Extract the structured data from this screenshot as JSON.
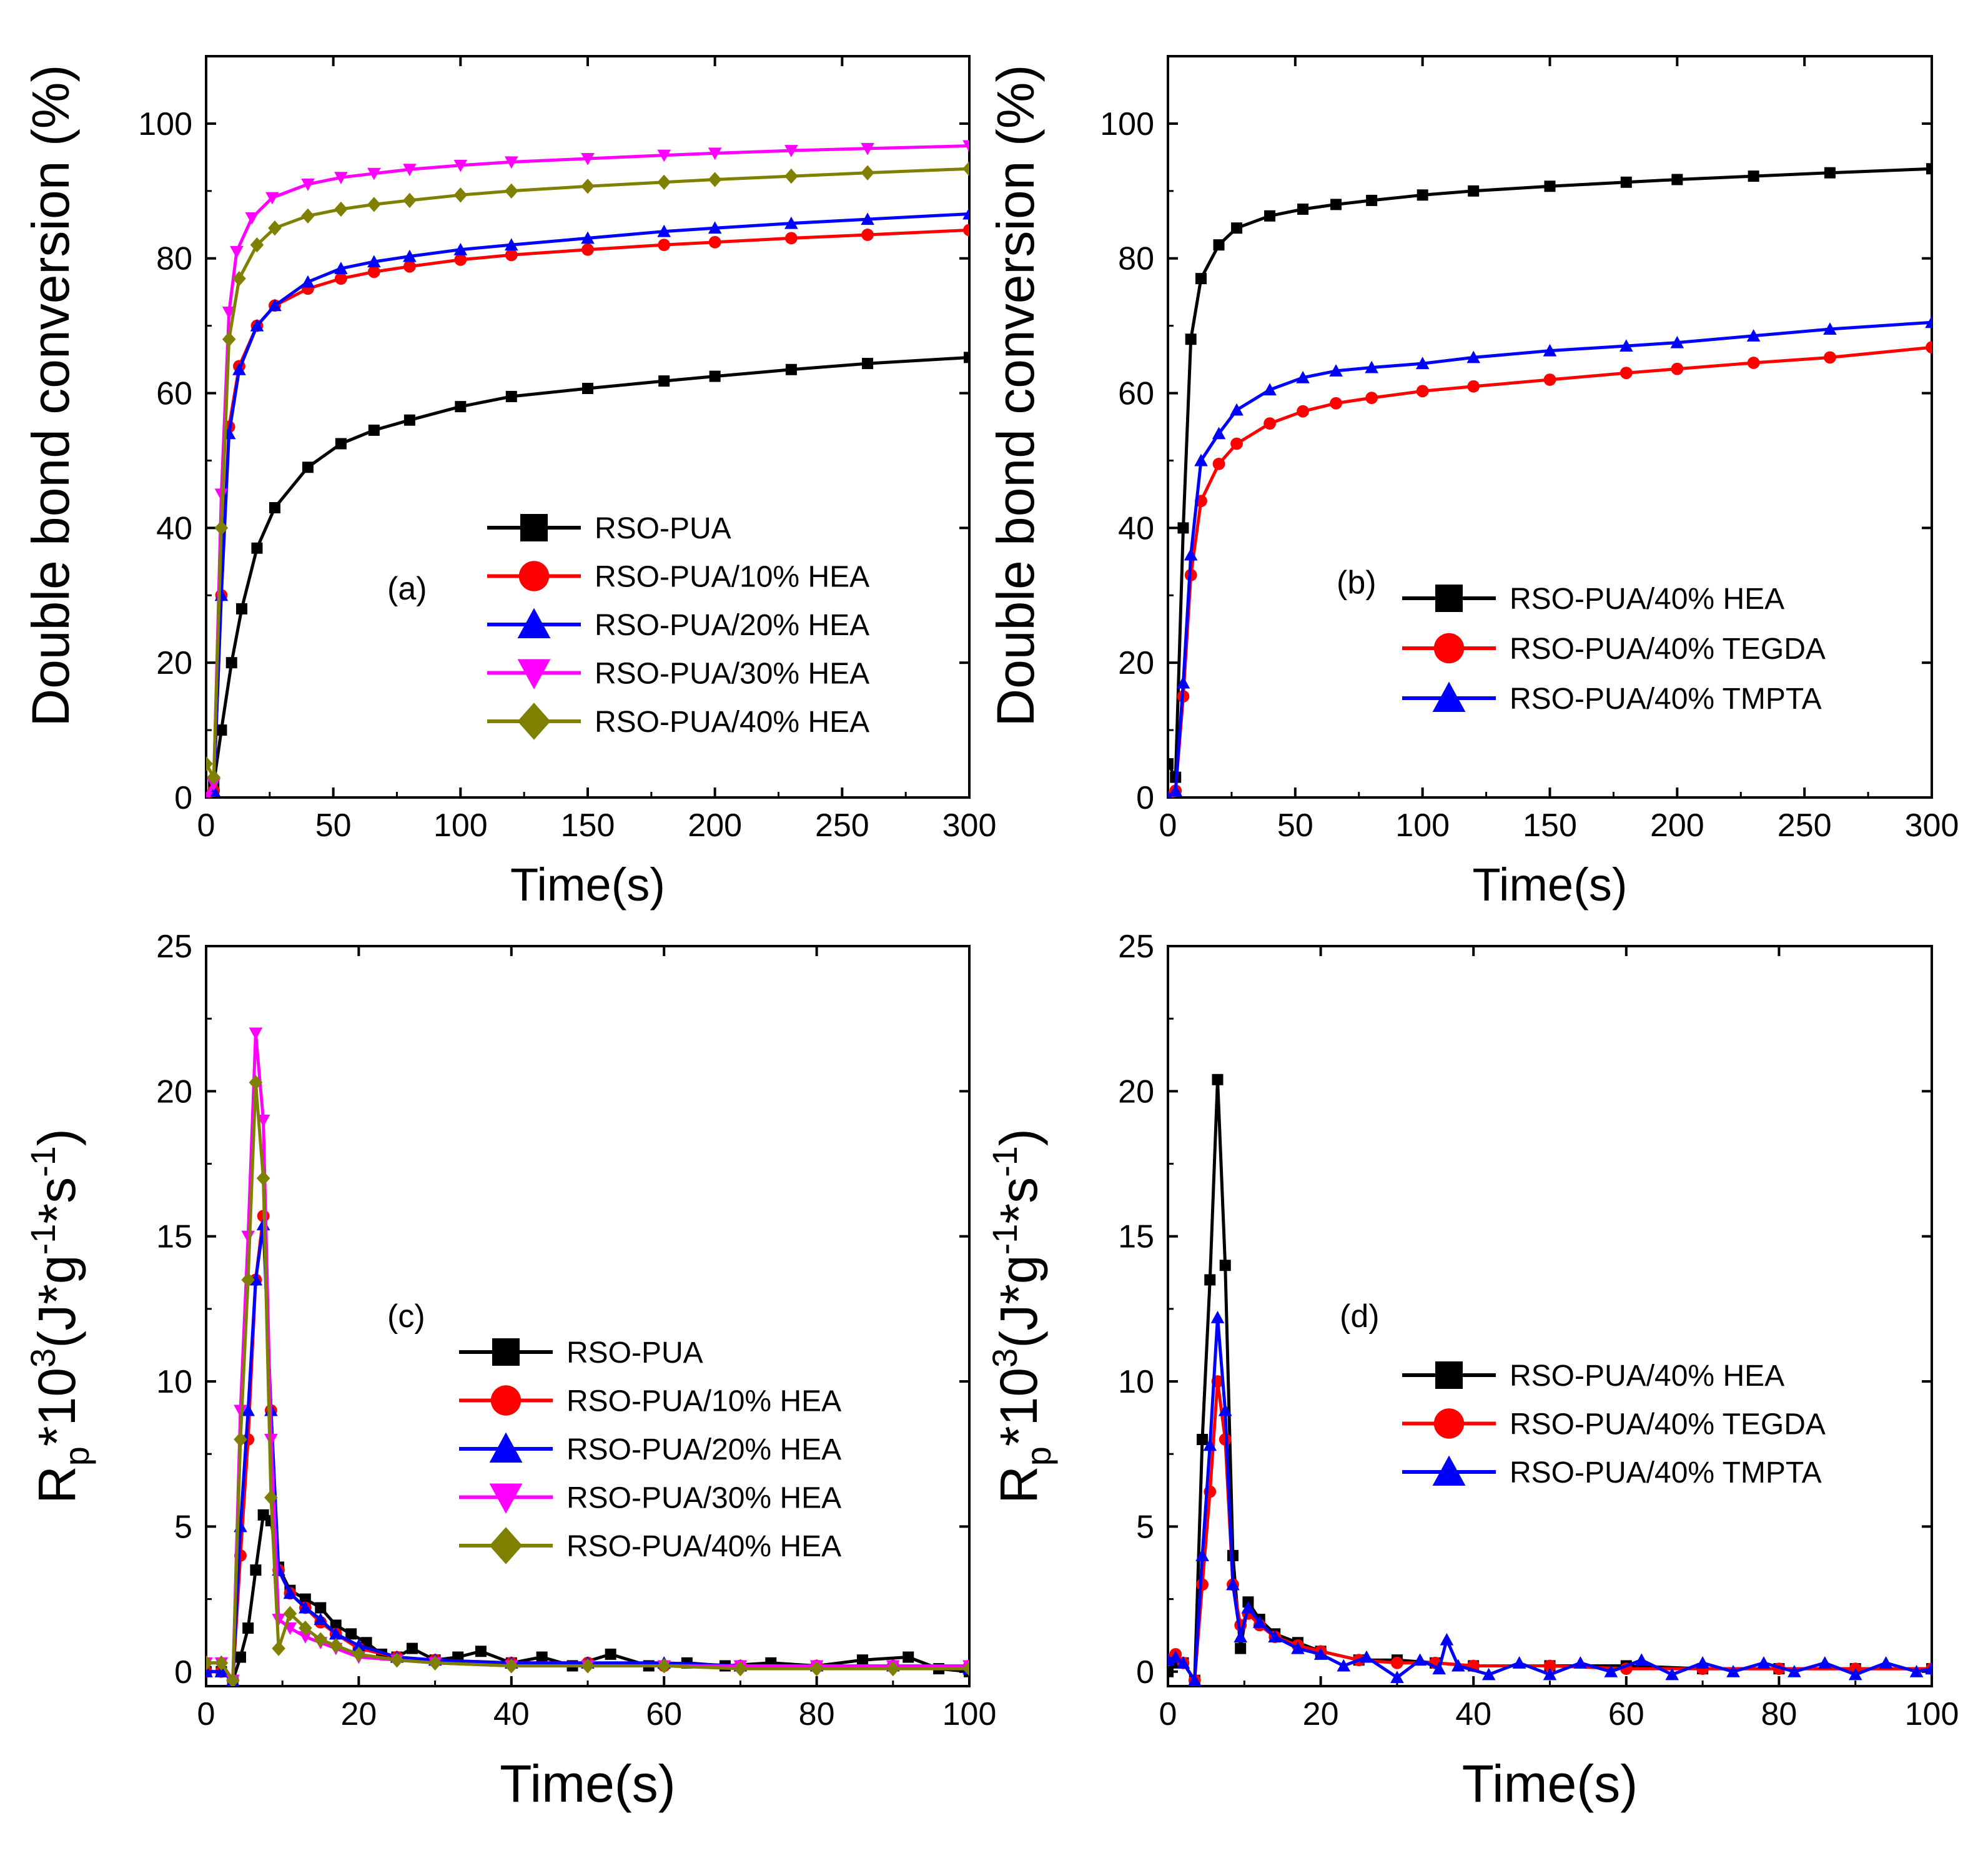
{
  "chart_data": [
    {
      "id": "a",
      "type": "line",
      "panel_label": "(a)",
      "xlabel": "Time(s)",
      "ylabel": "Double bond conversion (%)",
      "xlim": [
        0,
        300
      ],
      "ylim": [
        0,
        110
      ],
      "xticks": [
        0,
        50,
        100,
        150,
        200,
        250,
        300
      ],
      "yticks": [
        0,
        20,
        40,
        60,
        80,
        100
      ],
      "legend_position": "center-right",
      "series": [
        {
          "name": "RSO-PUA",
          "color": "#000000",
          "marker": "square",
          "x": [
            0,
            3,
            6,
            10,
            14,
            20,
            27,
            40,
            53,
            66,
            80,
            100,
            120,
            150,
            180,
            200,
            230,
            260,
            300
          ],
          "y": [
            0,
            2,
            10,
            20,
            28,
            37,
            43,
            49,
            52.5,
            54.5,
            56,
            58,
            59.5,
            60.7,
            61.8,
            62.5,
            63.5,
            64.4,
            65.3
          ]
        },
        {
          "name": "RSO-PUA/10% HEA",
          "color": "#ff0000",
          "marker": "circle",
          "x": [
            0,
            3,
            6,
            9,
            13,
            20,
            27,
            40,
            53,
            66,
            80,
            100,
            120,
            150,
            180,
            200,
            230,
            260,
            300
          ],
          "y": [
            0,
            1,
            30,
            55,
            64,
            70,
            73,
            75.5,
            77,
            78,
            78.8,
            79.8,
            80.5,
            81.3,
            82,
            82.4,
            83,
            83.5,
            84.2
          ]
        },
        {
          "name": "RSO-PUA/20% HEA",
          "color": "#0000ff",
          "marker": "triangle-up",
          "x": [
            0,
            3,
            6,
            9,
            13,
            20,
            27,
            40,
            53,
            66,
            80,
            100,
            120,
            150,
            180,
            200,
            230,
            260,
            300
          ],
          "y": [
            0,
            1,
            30,
            54,
            63.5,
            70,
            73,
            76.5,
            78.5,
            79.5,
            80.3,
            81.3,
            82,
            83,
            84,
            84.5,
            85.2,
            85.8,
            86.6
          ]
        },
        {
          "name": "RSO-PUA/30% HEA",
          "color": "#ff00ff",
          "marker": "triangle-down",
          "x": [
            0,
            3,
            6,
            9,
            12,
            18,
            26,
            40,
            53,
            66,
            80,
            100,
            120,
            150,
            180,
            200,
            230,
            260,
            300
          ],
          "y": [
            0,
            2,
            45,
            72,
            81,
            86,
            89,
            91,
            92,
            92.6,
            93.2,
            93.8,
            94.3,
            94.8,
            95.3,
            95.6,
            96,
            96.3,
            96.7
          ]
        },
        {
          "name": "RSO-PUA/40% HEA",
          "color": "#808000",
          "marker": "diamond",
          "x": [
            0,
            3,
            6,
            9,
            13,
            20,
            27,
            40,
            53,
            66,
            80,
            100,
            120,
            150,
            180,
            200,
            230,
            260,
            300
          ],
          "y": [
            5,
            3,
            40,
            68,
            77,
            82,
            84.5,
            86.3,
            87.3,
            88,
            88.6,
            89.4,
            90,
            90.7,
            91.3,
            91.7,
            92.2,
            92.7,
            93.3
          ]
        }
      ]
    },
    {
      "id": "b",
      "type": "line",
      "panel_label": "(b)",
      "xlabel": "Time(s)",
      "ylabel": "Double bond conversion (%)",
      "xlim": [
        0,
        300
      ],
      "ylim": [
        0,
        110
      ],
      "xticks": [
        0,
        50,
        100,
        150,
        200,
        250,
        300
      ],
      "yticks": [
        0,
        20,
        40,
        60,
        80,
        100
      ],
      "legend_position": "center-right",
      "series": [
        {
          "name": "RSO-PUA/40% HEA",
          "color": "#000000",
          "marker": "square",
          "x": [
            0,
            3,
            6,
            9,
            13,
            20,
            27,
            40,
            53,
            66,
            80,
            100,
            120,
            150,
            180,
            200,
            230,
            260,
            300
          ],
          "y": [
            5,
            3,
            40,
            68,
            77,
            82,
            84.5,
            86.3,
            87.3,
            88,
            88.6,
            89.4,
            90,
            90.7,
            91.3,
            91.7,
            92.2,
            92.7,
            93.3
          ]
        },
        {
          "name": "RSO-PUA/40% TEGDA",
          "color": "#ff0000",
          "marker": "circle",
          "x": [
            0,
            3,
            6,
            9,
            13,
            20,
            27,
            40,
            53,
            66,
            80,
            100,
            120,
            150,
            180,
            200,
            230,
            260,
            300
          ],
          "y": [
            0,
            1,
            15,
            33,
            44,
            49.5,
            52.5,
            55.5,
            57.3,
            58.5,
            59.3,
            60.3,
            61,
            62,
            63,
            63.6,
            64.5,
            65.3,
            66.8
          ]
        },
        {
          "name": "RSO-PUA/40% TMPTA",
          "color": "#0000ff",
          "marker": "triangle-up",
          "x": [
            0,
            3,
            6,
            9,
            13,
            20,
            27,
            40,
            53,
            66,
            80,
            100,
            120,
            150,
            180,
            200,
            230,
            260,
            300
          ],
          "y": [
            0,
            1,
            17,
            36,
            50,
            54,
            57.5,
            60.5,
            62.3,
            63.3,
            63.8,
            64.4,
            65.3,
            66.3,
            67,
            67.5,
            68.5,
            69.5,
            70.5
          ]
        }
      ]
    },
    {
      "id": "c",
      "type": "line",
      "panel_label": "(c)",
      "xlabel": "Time(s)",
      "ylabel_main": "R",
      "ylabel_sub": "p",
      "ylabel_mid": "*10",
      "ylabel_sup1": "3",
      "ylabel_paren": "(J*g",
      "ylabel_sup2": "-1",
      "ylabel_mid2": "*s",
      "ylabel_sup3": "-1",
      "ylabel_close": ")",
      "xlim": [
        0,
        100
      ],
      "ylim": [
        -0.5,
        25
      ],
      "xticks": [
        0,
        20,
        40,
        60,
        80,
        100
      ],
      "yticks": [
        0,
        5,
        10,
        15,
        20,
        25
      ],
      "legend_position": "center-right",
      "series": [
        {
          "name": "RSO-PUA",
          "color": "#000000",
          "marker": "square",
          "x": [
            0,
            2,
            3.5,
            4.5,
            5.5,
            6.5,
            7.5,
            8.5,
            9.5,
            11,
            13,
            15,
            17,
            19,
            21,
            23,
            25,
            27,
            30,
            33,
            36,
            40,
            44,
            48,
            53,
            58,
            63,
            68,
            74,
            80,
            86,
            92,
            96,
            100
          ],
          "y": [
            0,
            0,
            -0.3,
            0.5,
            1.5,
            3.5,
            5.4,
            5.2,
            3.6,
            2.8,
            2.5,
            2.2,
            1.6,
            1.3,
            1.0,
            0.6,
            0.5,
            0.8,
            0.4,
            0.5,
            0.7,
            0.3,
            0.5,
            0.2,
            0.6,
            0.2,
            0.3,
            0.2,
            0.3,
            0.2,
            0.4,
            0.5,
            0.1,
            0.0
          ]
        },
        {
          "name": "RSO-PUA/10% HEA",
          "color": "#ff0000",
          "marker": "circle",
          "x": [
            0,
            2,
            3.5,
            4.5,
            5.5,
            6.5,
            7.5,
            8.5,
            9.5,
            11,
            13,
            15,
            17,
            20,
            25,
            30,
            40,
            50,
            60,
            70,
            80,
            90,
            100
          ],
          "y": [
            0,
            0,
            -0.3,
            4,
            8,
            13.5,
            15.7,
            9,
            3.5,
            2.7,
            2.2,
            1.7,
            1.3,
            0.8,
            0.5,
            0.4,
            0.3,
            0.3,
            0.2,
            0.2,
            0.2,
            0.2,
            0.2
          ]
        },
        {
          "name": "RSO-PUA/20% HEA",
          "color": "#0000ff",
          "marker": "triangle-up",
          "x": [
            0,
            2,
            3.5,
            4.5,
            5.5,
            6.5,
            7.5,
            8.5,
            9.5,
            11,
            13,
            15,
            17,
            20,
            25,
            30,
            40,
            50,
            60,
            70,
            80,
            90,
            100
          ],
          "y": [
            0,
            0,
            -0.3,
            5,
            9,
            13.5,
            15.4,
            9,
            3.5,
            2.7,
            2.2,
            1.8,
            1.3,
            0.9,
            0.5,
            0.4,
            0.3,
            0.3,
            0.3,
            0.2,
            0.2,
            0.2,
            0.1
          ]
        },
        {
          "name": "RSO-PUA/30% HEA",
          "color": "#ff00ff",
          "marker": "triangle-down",
          "x": [
            0,
            2,
            3.5,
            4.5,
            5.5,
            6.5,
            7.5,
            8.5,
            9.5,
            11,
            13,
            15,
            17,
            20,
            25,
            30,
            40,
            50,
            60,
            70,
            80,
            90,
            100
          ],
          "y": [
            0.3,
            0.3,
            -0.3,
            9,
            15,
            22,
            19,
            8,
            1.8,
            1.5,
            1.2,
            1.0,
            0.8,
            0.5,
            0.4,
            0.3,
            0.2,
            0.2,
            0.2,
            0.2,
            0.2,
            0.2,
            0.2
          ]
        },
        {
          "name": "RSO-PUA/40% HEA",
          "color": "#808000",
          "marker": "diamond",
          "x": [
            0,
            2,
            3.5,
            4.5,
            5.5,
            6.5,
            7.5,
            8.5,
            9.5,
            11,
            13,
            15,
            17,
            20,
            25,
            30,
            40,
            50,
            60,
            70,
            80,
            90,
            100
          ],
          "y": [
            0.3,
            0.3,
            -0.3,
            8,
            13.5,
            20.3,
            17,
            6,
            0.8,
            2.0,
            1.5,
            1.1,
            0.9,
            0.6,
            0.4,
            0.3,
            0.2,
            0.2,
            0.2,
            0.1,
            0.1,
            0.1,
            0.1
          ]
        }
      ]
    },
    {
      "id": "d",
      "type": "line",
      "panel_label": "(d)",
      "xlabel": "Time(s)",
      "ylabel_main": "R",
      "ylabel_sub": "p",
      "ylabel_mid": "*10",
      "ylabel_sup1": "3",
      "ylabel_paren": "(J*g",
      "ylabel_sup2": "-1",
      "ylabel_mid2": "*s",
      "ylabel_sup3": "-1",
      "ylabel_close": ")",
      "xlim": [
        0,
        100
      ],
      "ylim": [
        -0.5,
        25
      ],
      "xticks": [
        0,
        20,
        40,
        60,
        80,
        100
      ],
      "yticks": [
        0,
        5,
        10,
        15,
        20,
        25
      ],
      "legend_position": "center-right",
      "series": [
        {
          "name": "RSO-PUA/40% HEA",
          "color": "#000000",
          "marker": "square",
          "x": [
            0,
            1,
            2,
            3.5,
            4.5,
            5.5,
            6.5,
            7.5,
            8.5,
            9.5,
            10.5,
            12,
            14,
            17,
            20,
            25,
            30,
            35,
            40,
            50,
            60,
            70,
            80,
            90,
            100
          ],
          "y": [
            0,
            0.3,
            0.3,
            -0.3,
            8,
            13.5,
            20.4,
            14,
            4,
            0.8,
            2.4,
            1.8,
            1.3,
            1.0,
            0.7,
            0.4,
            0.4,
            0.3,
            0.2,
            0.2,
            0.2,
            0.1,
            0.1,
            0.1,
            0.1
          ]
        },
        {
          "name": "RSO-PUA/40% TEGDA",
          "color": "#ff0000",
          "marker": "circle",
          "x": [
            0,
            1,
            2,
            3.5,
            4.5,
            5.5,
            6.5,
            7.5,
            8.5,
            9.5,
            10.5,
            12,
            14,
            17,
            20,
            25,
            30,
            35,
            40,
            50,
            60,
            70,
            80,
            90,
            100
          ],
          "y": [
            0.4,
            0.6,
            0.3,
            -0.3,
            3,
            6.2,
            10,
            8,
            3,
            1.6,
            2.0,
            1.6,
            1.2,
            0.9,
            0.7,
            0.4,
            0.3,
            0.3,
            0.2,
            0.2,
            0.1,
            0.1,
            0.1,
            0.1,
            0.1
          ]
        },
        {
          "name": "RSO-PUA/40% TMPTA",
          "color": "#0000ff",
          "marker": "triangle-up",
          "x": [
            0,
            1,
            2,
            3.5,
            4.5,
            5.5,
            6.5,
            7.5,
            8.5,
            9.5,
            10.5,
            12,
            14,
            17,
            20,
            23,
            26,
            30,
            33,
            35.5,
            36.5,
            38,
            42,
            46,
            50,
            54,
            58,
            62,
            66,
            70,
            74,
            78,
            82,
            86,
            90,
            94,
            98,
            100
          ],
          "y": [
            0.4,
            0.5,
            0.3,
            -0.3,
            4,
            7.8,
            12.2,
            9,
            3,
            1.2,
            2.2,
            1.7,
            1.2,
            0.8,
            0.6,
            0.2,
            0.5,
            -0.2,
            0.4,
            0.1,
            1.1,
            0.2,
            -0.1,
            0.3,
            -0.1,
            0.3,
            0.0,
            0.4,
            -0.1,
            0.3,
            0.0,
            0.3,
            0.0,
            0.3,
            -0.1,
            0.3,
            0.0,
            0.1
          ]
        }
      ]
    }
  ]
}
